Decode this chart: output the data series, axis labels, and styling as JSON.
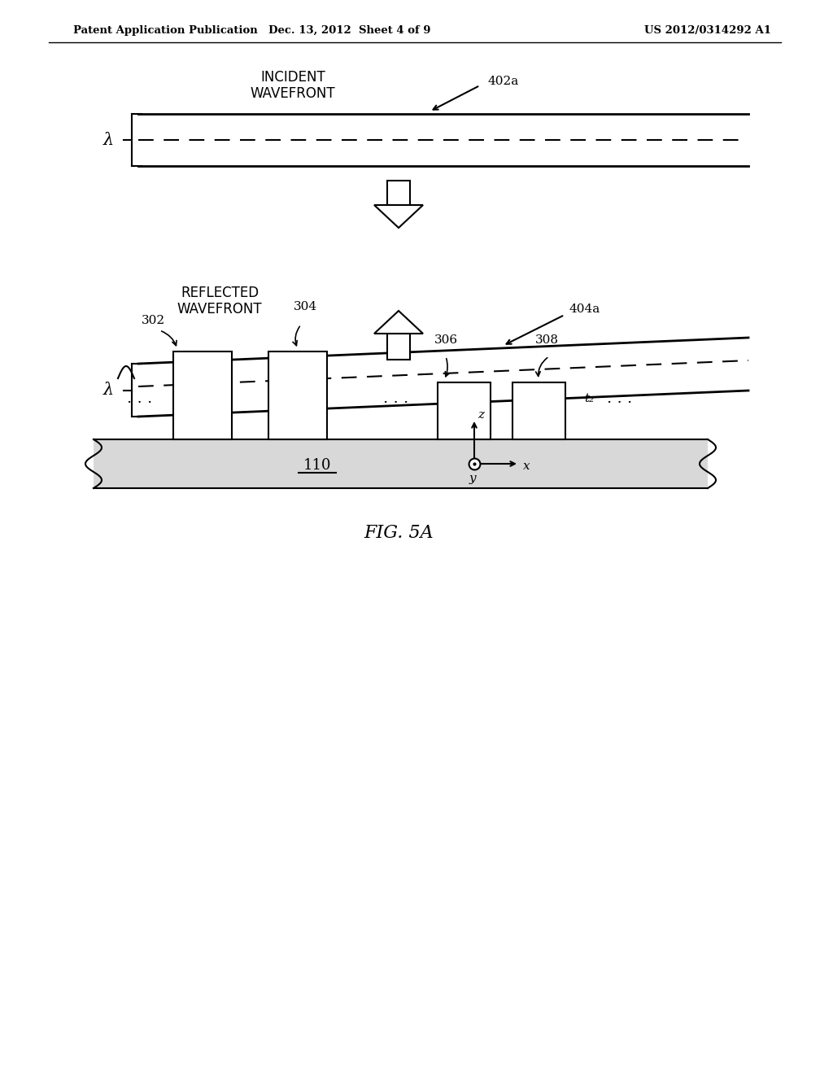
{
  "header_left": "Patent Application Publication",
  "header_center": "Dec. 13, 2012  Sheet 4 of 9",
  "header_right": "US 2012/0314292 A1",
  "figure_label": "FIG. 5A",
  "bg_color": "#ffffff",
  "line_color": "#000000",
  "incident_label": "INCIDENT\nWAVEFRONT",
  "incident_ref": "402a",
  "reflected_label": "REFLECTED\nWAVEFRONT",
  "reflected_ref": "404a",
  "lambda_label": "λ",
  "substrate_label": "110",
  "ref_302": "302",
  "ref_304": "304",
  "ref_306": "306",
  "ref_308": "308",
  "t2_label": "t₂"
}
